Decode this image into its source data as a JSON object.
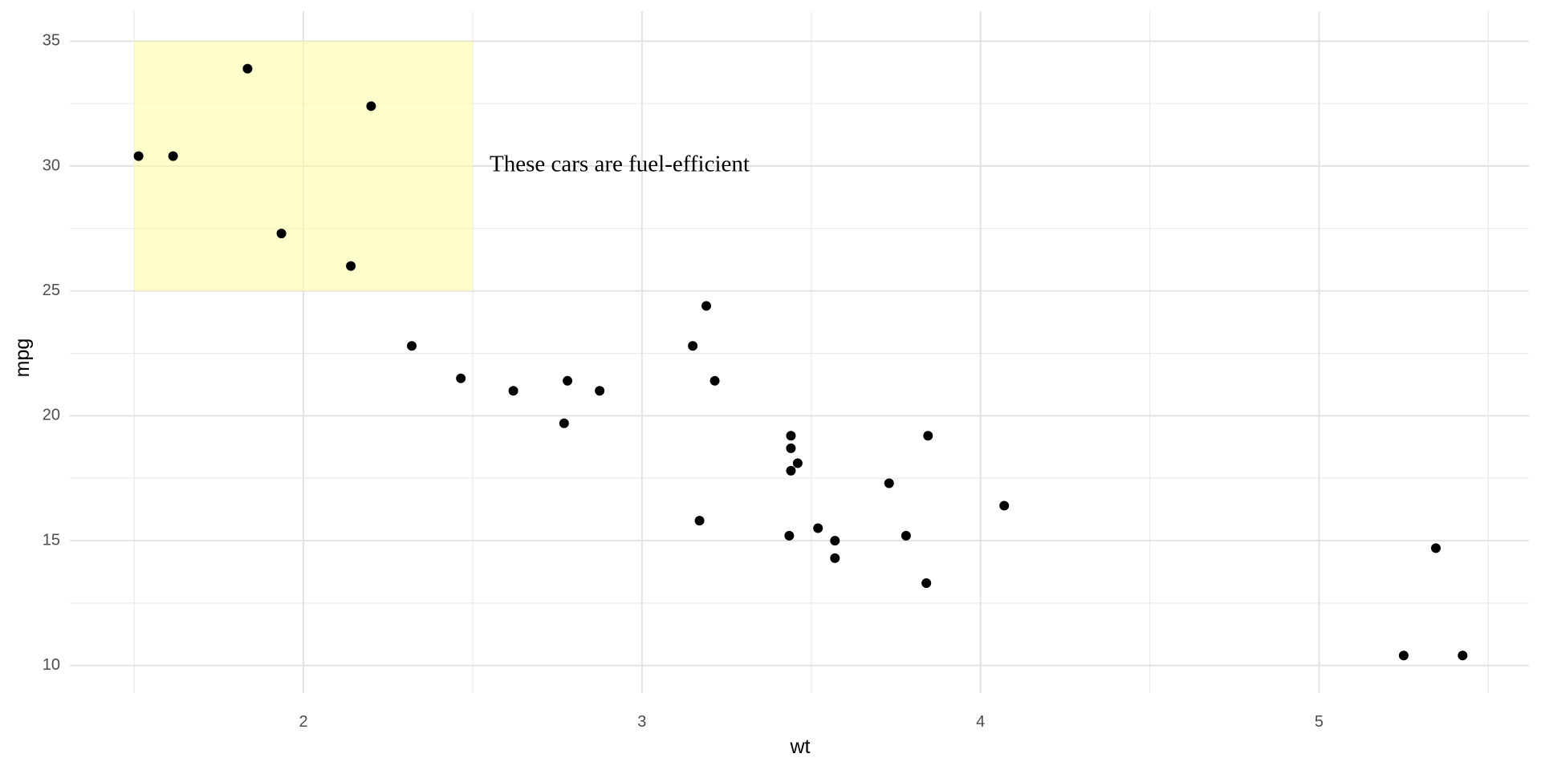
{
  "chart_data": {
    "type": "scatter",
    "xlabel": "wt",
    "ylabel": "mpg",
    "xlim": [
      1.31,
      5.62
    ],
    "ylim": [
      8.9,
      36.2
    ],
    "x_ticks": [
      2,
      3,
      4,
      5
    ],
    "x_tick_labels": [
      "2",
      "3",
      "4",
      "5"
    ],
    "x_minor_ticks": [
      1.5,
      2.5,
      3.5,
      4.5,
      5.5
    ],
    "y_ticks": [
      10,
      15,
      20,
      25,
      30,
      35
    ],
    "y_tick_labels": [
      "10",
      "15",
      "20",
      "25",
      "30",
      "35"
    ],
    "y_minor_ticks": [
      12.5,
      17.5,
      22.5,
      27.5,
      32.5
    ],
    "grid": true,
    "highlight_region": {
      "xmin": 1.5,
      "xmax": 2.5,
      "ymin": 25,
      "ymax": 35,
      "fill_color": "#ffff99",
      "opacity": 0.5
    },
    "annotation": {
      "text": "These cars are fuel-efficient",
      "x": 2.55,
      "y": 30
    },
    "point_color": "#000000",
    "points": [
      {
        "x": 2.62,
        "y": 21.0
      },
      {
        "x": 2.875,
        "y": 21.0
      },
      {
        "x": 2.32,
        "y": 22.8
      },
      {
        "x": 3.215,
        "y": 21.4
      },
      {
        "x": 3.44,
        "y": 18.7
      },
      {
        "x": 3.46,
        "y": 18.1
      },
      {
        "x": 3.57,
        "y": 14.3
      },
      {
        "x": 3.19,
        "y": 24.4
      },
      {
        "x": 3.15,
        "y": 22.8
      },
      {
        "x": 3.44,
        "y": 19.2
      },
      {
        "x": 3.44,
        "y": 17.8
      },
      {
        "x": 4.07,
        "y": 16.4
      },
      {
        "x": 3.73,
        "y": 17.3
      },
      {
        "x": 3.78,
        "y": 15.2
      },
      {
        "x": 5.25,
        "y": 10.4
      },
      {
        "x": 5.424,
        "y": 10.4
      },
      {
        "x": 5.345,
        "y": 14.7
      },
      {
        "x": 2.2,
        "y": 32.4
      },
      {
        "x": 1.615,
        "y": 30.4
      },
      {
        "x": 1.835,
        "y": 33.9
      },
      {
        "x": 2.465,
        "y": 21.5
      },
      {
        "x": 3.52,
        "y": 15.5
      },
      {
        "x": 3.435,
        "y": 15.2
      },
      {
        "x": 3.84,
        "y": 13.3
      },
      {
        "x": 3.845,
        "y": 19.2
      },
      {
        "x": 1.935,
        "y": 27.3
      },
      {
        "x": 2.14,
        "y": 26.0
      },
      {
        "x": 1.513,
        "y": 30.4
      },
      {
        "x": 3.17,
        "y": 15.8
      },
      {
        "x": 2.77,
        "y": 19.7
      },
      {
        "x": 3.57,
        "y": 15.0
      },
      {
        "x": 2.78,
        "y": 21.4
      }
    ]
  }
}
